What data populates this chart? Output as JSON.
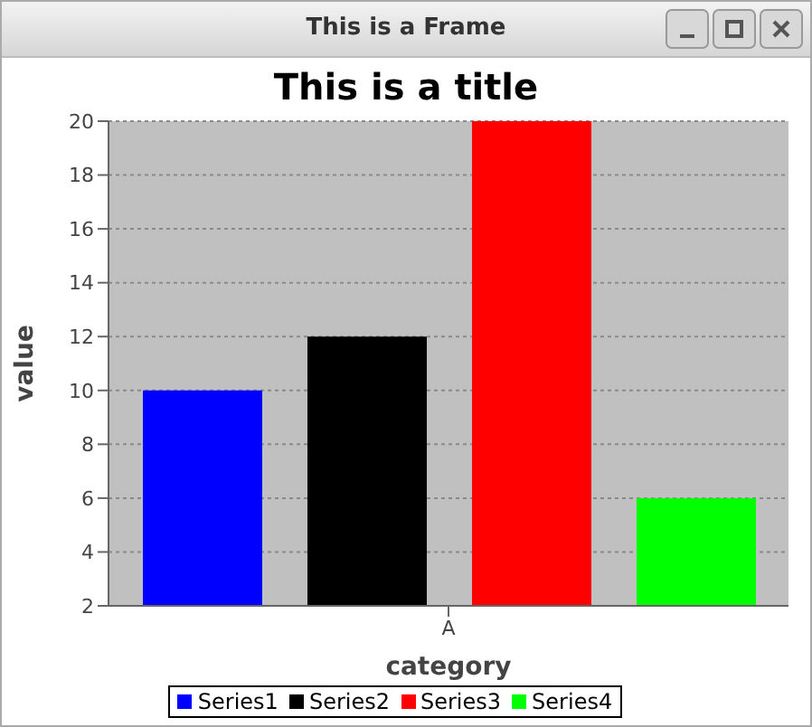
{
  "chart_data": {
    "type": "bar",
    "title": "This is a title",
    "annotations": [
      "This is a Frame"
    ],
    "xlabel": "category",
    "ylabel": "value",
    "categories": [
      "A"
    ],
    "series": [
      {
        "name": "Series1",
        "color": "#0000ff",
        "values": [
          10
        ]
      },
      {
        "name": "Series2",
        "color": "#000000",
        "values": [
          12
        ]
      },
      {
        "name": "Series3",
        "color": "#ff0000",
        "values": [
          20
        ]
      },
      {
        "name": "Series4",
        "color": "#00ff00",
        "values": [
          6
        ]
      }
    ],
    "ylim": [
      2,
      20
    ],
    "yticks": [
      2,
      4,
      6,
      8,
      10,
      12,
      14,
      16,
      18,
      20
    ],
    "grid": "y",
    "legend": "bottom"
  }
}
